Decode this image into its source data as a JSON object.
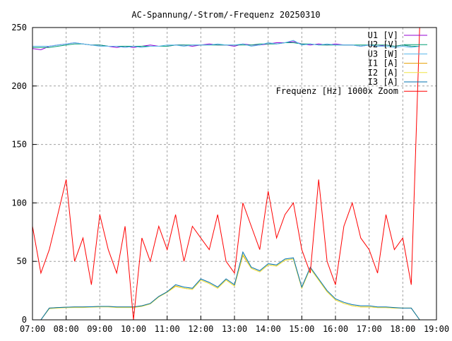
{
  "chart_data": {
    "type": "line",
    "title": "AC-Spannung/-Strom/-Frequenz 20250310",
    "xlabel": "",
    "ylabel": "",
    "xlim": [
      7,
      19
    ],
    "ylim": [
      0,
      250
    ],
    "xticks": [
      "07:00",
      "08:00",
      "09:00",
      "10:00",
      "11:00",
      "12:00",
      "13:00",
      "14:00",
      "15:00",
      "16:00",
      "17:00",
      "18:00",
      "19:00"
    ],
    "yticks": [
      "0",
      "50",
      "100",
      "150",
      "200",
      "250"
    ],
    "grid": true,
    "legend_position": "top-right",
    "x": [
      7.0,
      7.25,
      7.5,
      7.75,
      8.0,
      8.25,
      8.5,
      8.75,
      9.0,
      9.25,
      9.5,
      9.75,
      10.0,
      10.25,
      10.5,
      10.75,
      11.0,
      11.25,
      11.5,
      11.75,
      12.0,
      12.25,
      12.5,
      12.75,
      13.0,
      13.25,
      13.5,
      13.75,
      14.0,
      14.25,
      14.5,
      14.75,
      15.0,
      15.25,
      15.5,
      15.75,
      16.0,
      16.25,
      16.5,
      16.75,
      17.0,
      17.25,
      17.5,
      17.75,
      18.0,
      18.25,
      18.5
    ],
    "series": [
      {
        "name": "U1 [V]",
        "color": "#9400d3",
        "values": [
          232,
          231,
          234,
          235,
          236,
          237,
          236,
          235,
          235,
          234,
          233,
          234,
          233,
          234,
          235,
          234,
          234,
          235,
          235,
          234,
          235,
          236,
          235,
          235,
          234,
          236,
          235,
          235,
          236,
          237,
          237,
          238,
          236,
          235,
          236,
          235,
          236,
          235,
          235,
          234,
          235,
          234,
          235,
          234,
          235,
          234,
          234
        ]
      },
      {
        "name": "U2 [V]",
        "color": "#009e73",
        "values": [
          233,
          233,
          233,
          234,
          235,
          236,
          236,
          235,
          235,
          234,
          234,
          234,
          234,
          234,
          234,
          234,
          234,
          235,
          235,
          235,
          235,
          235,
          235,
          235,
          235,
          235,
          235,
          236,
          236,
          236,
          237,
          237,
          236,
          236,
          235,
          235,
          235,
          235,
          235,
          235,
          235,
          235,
          235,
          234,
          235,
          234,
          234
        ]
      },
      {
        "name": "U3 [W]",
        "color": "#56b4e9",
        "values": [
          234,
          234,
          234,
          235,
          236,
          237,
          236,
          235,
          234,
          234,
          234,
          233,
          234,
          233,
          234,
          234,
          235,
          235,
          234,
          235,
          235,
          235,
          236,
          235,
          235,
          236,
          234,
          235,
          237,
          236,
          237,
          239,
          235,
          236,
          235,
          236,
          235,
          235,
          235,
          234,
          235,
          234,
          234,
          233,
          234,
          233,
          234
        ]
      },
      {
        "name": "I1 [A]",
        "color": "#e69f00",
        "values": [
          0,
          0,
          10,
          10.5,
          10.8,
          11,
          11,
          11.2,
          11.5,
          11.5,
          11,
          11,
          11,
          12,
          14,
          20,
          24,
          29,
          27,
          26,
          34,
          31,
          27,
          34,
          29,
          55,
          44,
          41,
          47,
          46,
          51,
          52,
          27,
          44,
          34,
          24,
          17,
          14,
          12,
          11,
          11,
          10.5,
          10.5,
          10,
          10,
          10,
          0
        ]
      },
      {
        "name": "I2 [A]",
        "color": "#f0e442",
        "values": [
          0,
          0,
          9.5,
          10,
          10.3,
          10.5,
          10.5,
          10.8,
          11,
          11,
          10.5,
          10.5,
          10.5,
          11.5,
          13.5,
          19.5,
          23.5,
          28.5,
          27,
          26,
          34,
          31,
          27,
          34,
          29,
          56,
          44,
          41,
          47,
          46,
          51,
          52,
          27,
          44,
          34,
          24,
          17,
          14,
          12,
          11,
          11,
          10.5,
          10.5,
          10,
          10,
          10,
          0
        ]
      },
      {
        "name": "I3 [A]",
        "color": "#0072b2",
        "values": [
          0,
          0,
          10,
          10.5,
          10.8,
          11,
          11,
          11.2,
          11.5,
          11.5,
          11,
          11,
          11,
          12,
          14,
          20,
          24,
          30,
          28,
          27,
          35,
          32,
          28,
          35,
          30,
          58,
          45,
          42,
          48,
          47,
          52,
          53,
          28,
          45,
          35,
          25,
          18,
          15,
          13,
          12,
          12,
          11,
          11,
          10.5,
          10,
          10,
          0
        ]
      },
      {
        "name": "Frequenz [Hz] 1000x Zoom",
        "color": "#ff0000",
        "values": [
          80,
          40,
          60,
          90,
          120,
          50,
          70,
          30,
          90,
          60,
          40,
          80,
          0,
          70,
          50,
          80,
          60,
          90,
          50,
          80,
          70,
          60,
          90,
          50,
          40,
          100,
          80,
          60,
          110,
          70,
          90,
          100,
          60,
          40,
          120,
          50,
          30,
          80,
          100,
          70,
          60,
          40,
          90,
          60,
          70,
          30,
          250
        ]
      }
    ]
  }
}
